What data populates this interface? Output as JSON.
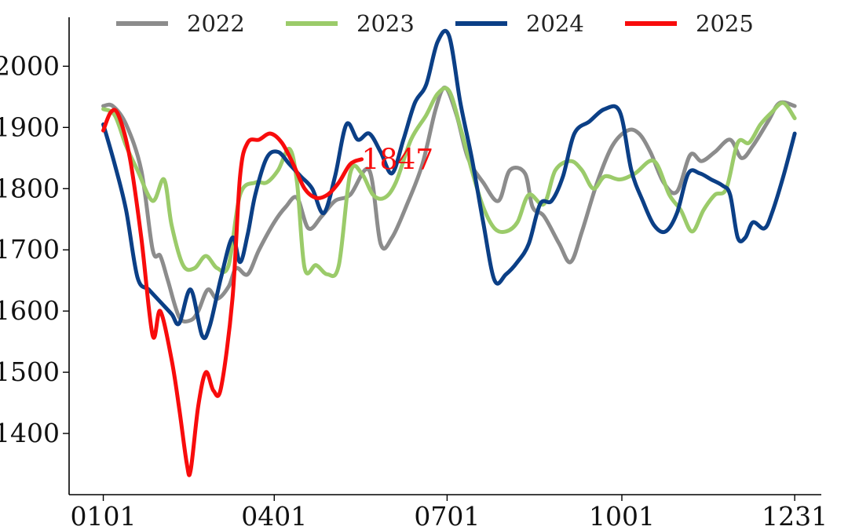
{
  "chart_data": {
    "type": "line",
    "title": "",
    "xlabel": "",
    "ylabel": "",
    "x_tick_labels": [
      "0101",
      "0401",
      "0701",
      "1001",
      "1231"
    ],
    "x_tick_days": [
      0,
      90,
      181,
      273,
      364
    ],
    "x_range_days": [
      -18,
      378
    ],
    "yticks": [
      1400,
      1500,
      1600,
      1700,
      1800,
      1900,
      2000
    ],
    "ylim": [
      1300,
      2080
    ],
    "grid": false,
    "legend": {
      "position": "top",
      "orientation": "horizontal"
    },
    "series": [
      {
        "name": "2022",
        "color": "#8c8c8c",
        "points": [
          [
            0,
            1935
          ],
          [
            5,
            1935
          ],
          [
            12,
            1905
          ],
          [
            20,
            1830
          ],
          [
            26,
            1700
          ],
          [
            30,
            1690
          ],
          [
            34,
            1650
          ],
          [
            40,
            1590
          ],
          [
            46,
            1585
          ],
          [
            50,
            1600
          ],
          [
            55,
            1635
          ],
          [
            60,
            1620
          ],
          [
            66,
            1640
          ],
          [
            70,
            1670
          ],
          [
            76,
            1660
          ],
          [
            82,
            1700
          ],
          [
            90,
            1745
          ],
          [
            96,
            1770
          ],
          [
            102,
            1785
          ],
          [
            108,
            1735
          ],
          [
            115,
            1755
          ],
          [
            122,
            1780
          ],
          [
            130,
            1790
          ],
          [
            140,
            1830
          ],
          [
            146,
            1710
          ],
          [
            152,
            1720
          ],
          [
            160,
            1775
          ],
          [
            168,
            1840
          ],
          [
            175,
            1930
          ],
          [
            180,
            1965
          ],
          [
            186,
            1920
          ],
          [
            192,
            1850
          ],
          [
            200,
            1810
          ],
          [
            208,
            1780
          ],
          [
            214,
            1830
          ],
          [
            222,
            1825
          ],
          [
            226,
            1770
          ],
          [
            232,
            1755
          ],
          [
            240,
            1710
          ],
          [
            246,
            1680
          ],
          [
            252,
            1730
          ],
          [
            260,
            1810
          ],
          [
            268,
            1870
          ],
          [
            276,
            1895
          ],
          [
            282,
            1890
          ],
          [
            288,
            1860
          ],
          [
            295,
            1810
          ],
          [
            302,
            1795
          ],
          [
            309,
            1855
          ],
          [
            315,
            1845
          ],
          [
            322,
            1860
          ],
          [
            330,
            1880
          ],
          [
            336,
            1850
          ],
          [
            342,
            1870
          ],
          [
            350,
            1910
          ],
          [
            356,
            1940
          ],
          [
            364,
            1935
          ]
        ]
      },
      {
        "name": "2023",
        "color": "#9bcb6a",
        "points": [
          [
            0,
            1930
          ],
          [
            6,
            1920
          ],
          [
            12,
            1870
          ],
          [
            18,
            1830
          ],
          [
            26,
            1780
          ],
          [
            32,
            1815
          ],
          [
            36,
            1740
          ],
          [
            42,
            1675
          ],
          [
            48,
            1670
          ],
          [
            54,
            1690
          ],
          [
            60,
            1670
          ],
          [
            66,
            1675
          ],
          [
            72,
            1790
          ],
          [
            80,
            1810
          ],
          [
            86,
            1810
          ],
          [
            92,
            1830
          ],
          [
            98,
            1865
          ],
          [
            102,
            1810
          ],
          [
            106,
            1670
          ],
          [
            112,
            1675
          ],
          [
            118,
            1660
          ],
          [
            124,
            1675
          ],
          [
            130,
            1825
          ],
          [
            136,
            1825
          ],
          [
            142,
            1790
          ],
          [
            148,
            1785
          ],
          [
            154,
            1810
          ],
          [
            162,
            1880
          ],
          [
            170,
            1920
          ],
          [
            176,
            1955
          ],
          [
            182,
            1960
          ],
          [
            188,
            1900
          ],
          [
            194,
            1830
          ],
          [
            200,
            1770
          ],
          [
            206,
            1735
          ],
          [
            212,
            1730
          ],
          [
            218,
            1745
          ],
          [
            224,
            1790
          ],
          [
            232,
            1775
          ],
          [
            238,
            1830
          ],
          [
            246,
            1845
          ],
          [
            252,
            1830
          ],
          [
            258,
            1800
          ],
          [
            264,
            1820
          ],
          [
            272,
            1815
          ],
          [
            280,
            1825
          ],
          [
            290,
            1845
          ],
          [
            298,
            1790
          ],
          [
            304,
            1765
          ],
          [
            310,
            1730
          ],
          [
            316,
            1765
          ],
          [
            322,
            1790
          ],
          [
            328,
            1800
          ],
          [
            334,
            1875
          ],
          [
            340,
            1875
          ],
          [
            346,
            1905
          ],
          [
            352,
            1925
          ],
          [
            358,
            1940
          ],
          [
            364,
            1915
          ]
        ]
      },
      {
        "name": "2024",
        "color": "#0b3f86",
        "points": [
          [
            0,
            1905
          ],
          [
            6,
            1840
          ],
          [
            12,
            1765
          ],
          [
            18,
            1655
          ],
          [
            24,
            1635
          ],
          [
            30,
            1615
          ],
          [
            36,
            1595
          ],
          [
            40,
            1580
          ],
          [
            46,
            1635
          ],
          [
            52,
            1560
          ],
          [
            56,
            1575
          ],
          [
            62,
            1655
          ],
          [
            68,
            1720
          ],
          [
            72,
            1680
          ],
          [
            76,
            1725
          ],
          [
            80,
            1790
          ],
          [
            86,
            1850
          ],
          [
            92,
            1860
          ],
          [
            98,
            1840
          ],
          [
            104,
            1820
          ],
          [
            110,
            1800
          ],
          [
            116,
            1760
          ],
          [
            122,
            1820
          ],
          [
            128,
            1905
          ],
          [
            134,
            1880
          ],
          [
            140,
            1890
          ],
          [
            146,
            1860
          ],
          [
            152,
            1825
          ],
          [
            158,
            1880
          ],
          [
            164,
            1940
          ],
          [
            170,
            1970
          ],
          [
            176,
            2040
          ],
          [
            182,
            2050
          ],
          [
            188,
            1940
          ],
          [
            194,
            1850
          ],
          [
            200,
            1745
          ],
          [
            206,
            1650
          ],
          [
            212,
            1660
          ],
          [
            218,
            1680
          ],
          [
            224,
            1710
          ],
          [
            230,
            1775
          ],
          [
            236,
            1780
          ],
          [
            242,
            1820
          ],
          [
            248,
            1890
          ],
          [
            256,
            1910
          ],
          [
            264,
            1930
          ],
          [
            272,
            1925
          ],
          [
            278,
            1830
          ],
          [
            284,
            1780
          ],
          [
            290,
            1740
          ],
          [
            296,
            1730
          ],
          [
            302,
            1760
          ],
          [
            308,
            1825
          ],
          [
            314,
            1825
          ],
          [
            320,
            1815
          ],
          [
            326,
            1805
          ],
          [
            330,
            1790
          ],
          [
            334,
            1720
          ],
          [
            338,
            1720
          ],
          [
            342,
            1745
          ],
          [
            348,
            1735
          ],
          [
            352,
            1760
          ],
          [
            358,
            1820
          ],
          [
            364,
            1890
          ]
        ]
      },
      {
        "name": "2025",
        "color": "#f80c0c",
        "points": [
          [
            0,
            1895
          ],
          [
            4,
            1925
          ],
          [
            8,
            1920
          ],
          [
            14,
            1850
          ],
          [
            20,
            1720
          ],
          [
            26,
            1560
          ],
          [
            30,
            1600
          ],
          [
            36,
            1520
          ],
          [
            40,
            1440
          ],
          [
            44,
            1350
          ],
          [
            46,
            1340
          ],
          [
            50,
            1445
          ],
          [
            54,
            1500
          ],
          [
            58,
            1470
          ],
          [
            62,
            1475
          ],
          [
            68,
            1620
          ],
          [
            72,
            1820
          ],
          [
            76,
            1875
          ],
          [
            82,
            1880
          ],
          [
            88,
            1890
          ],
          [
            94,
            1875
          ],
          [
            100,
            1840
          ],
          [
            106,
            1800
          ],
          [
            112,
            1785
          ],
          [
            118,
            1790
          ],
          [
            124,
            1810
          ],
          [
            130,
            1840
          ],
          [
            136,
            1848
          ]
        ]
      }
    ],
    "annotations": [
      {
        "text": "1847",
        "color": "#f80c0c",
        "x_day": 136,
        "y": 1847
      }
    ]
  }
}
